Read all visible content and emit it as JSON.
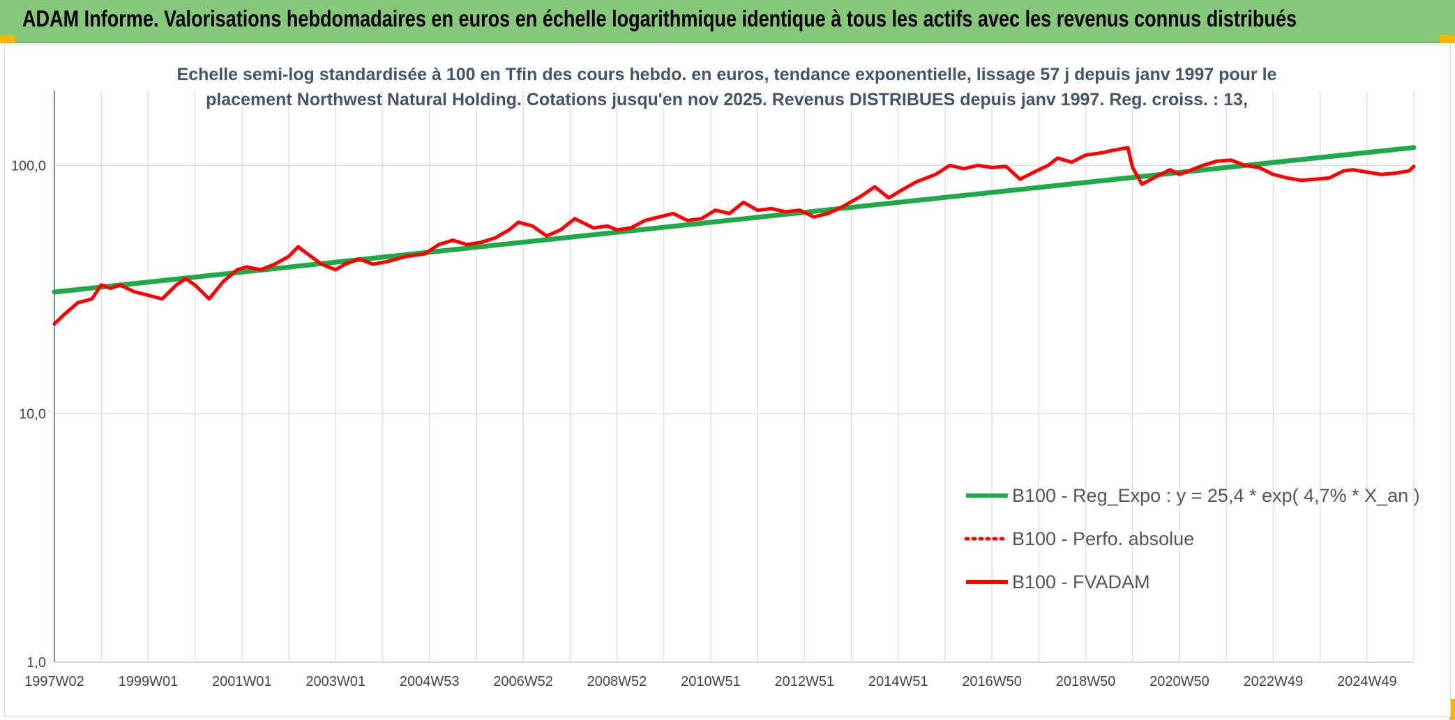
{
  "header": {
    "title": "ADAM Informe. Valorisations hebdomadaires en euros en échelle logarithmique identique à tous les actifs avec les revenus connus distribués"
  },
  "chart_data": {
    "type": "line",
    "title_lines": [
      "Echelle semi-log standardisée à 100 en Tfin des cours hebdo. en euros, tendance exponentielle, lissage 57 j depuis janv 1997 pour le",
      "placement Northwest Natural Holding. Cotations jusqu'en nov 2025. Revenus DISTRIBUES depuis janv 1997. Reg. croiss. : 13,"
    ],
    "y_scale": "log",
    "ylim": [
      1,
      200
    ],
    "y_ticks": [
      {
        "value": 1,
        "label": "1,0"
      },
      {
        "value": 10,
        "label": "10,0"
      },
      {
        "value": 100,
        "label": "100,0"
      }
    ],
    "xlim": [
      1997.0,
      2026.0
    ],
    "x_ticks": [
      {
        "value": 1997.0,
        "label": "1997W02"
      },
      {
        "value": 1999.0,
        "label": "1999W01"
      },
      {
        "value": 2001.0,
        "label": "2001W01"
      },
      {
        "value": 2003.0,
        "label": "2003W01"
      },
      {
        "value": 2005.0,
        "label": "2004W53"
      },
      {
        "value": 2007.0,
        "label": "2006W52"
      },
      {
        "value": 2009.0,
        "label": "2008W52"
      },
      {
        "value": 2011.0,
        "label": "2010W51"
      },
      {
        "value": 2013.0,
        "label": "2012W51"
      },
      {
        "value": 2015.0,
        "label": "2014W51"
      },
      {
        "value": 2017.0,
        "label": "2016W50"
      },
      {
        "value": 2019.0,
        "label": "2018W50"
      },
      {
        "value": 2021.0,
        "label": "2020W50"
      },
      {
        "value": 2023.0,
        "label": "2022W49"
      },
      {
        "value": 2025.0,
        "label": "2024W49"
      }
    ],
    "grid": true,
    "legend_position": "bottom-right",
    "series": [
      {
        "name": "B100 - Reg_Expo : y = 25,4 * exp( 4,7% *  X_an )",
        "color": "#1faa4a",
        "style": "solid",
        "x": [
          1997.0,
          2026.0
        ],
        "y": [
          30.9,
          118.0
        ]
      },
      {
        "name": "B100 - Perfo. absolue",
        "color": "#ff0000",
        "style": "dotted",
        "x": [],
        "y": []
      },
      {
        "name": "B100 - FVADAM",
        "color": "#ff0000",
        "style": "solid",
        "x": [
          1997.0,
          1997.2,
          1997.5,
          1997.8,
          1998.0,
          1998.2,
          1998.4,
          1998.7,
          1999.0,
          1999.3,
          1999.6,
          1999.8,
          2000.0,
          2000.3,
          2000.6,
          2000.9,
          2001.1,
          2001.4,
          2001.7,
          2002.0,
          2002.2,
          2002.4,
          2002.7,
          2003.0,
          2003.2,
          2003.5,
          2003.8,
          2004.1,
          2004.5,
          2004.9,
          2005.2,
          2005.5,
          2005.8,
          2006.1,
          2006.4,
          2006.7,
          2006.9,
          2007.2,
          2007.5,
          2007.8,
          2008.1,
          2008.5,
          2008.8,
          2009.0,
          2009.3,
          2009.6,
          2009.9,
          2010.2,
          2010.5,
          2010.8,
          2011.1,
          2011.4,
          2011.7,
          2012.0,
          2012.3,
          2012.6,
          2012.9,
          2013.2,
          2013.5,
          2013.8,
          2014.2,
          2014.5,
          2014.8,
          2015.1,
          2015.4,
          2015.8,
          2016.1,
          2016.4,
          2016.7,
          2017.0,
          2017.3,
          2017.6,
          2017.9,
          2018.2,
          2018.4,
          2018.7,
          2019.0,
          2019.3,
          2019.6,
          2019.9,
          2020.0,
          2020.2,
          2020.5,
          2020.8,
          2021.0,
          2021.2,
          2021.5,
          2021.8,
          2022.1,
          2022.4,
          2022.7,
          2023.0,
          2023.3,
          2023.6,
          2023.9,
          2024.2,
          2024.5,
          2024.7,
          2025.0,
          2025.3,
          2025.6,
          2025.9,
          2026.0
        ],
        "y": [
          23,
          25,
          28,
          29,
          33,
          32,
          33,
          31,
          30,
          29,
          33,
          35,
          33,
          29,
          34,
          38,
          39,
          38,
          40,
          43,
          47,
          44,
          40,
          38,
          40,
          42,
          40,
          41,
          43,
          44,
          48,
          50,
          48,
          49,
          51,
          55,
          59,
          57,
          52,
          55,
          61,
          56,
          57,
          55,
          56,
          60,
          62,
          64,
          60,
          61,
          66,
          64,
          71,
          66,
          67,
          65,
          66,
          62,
          64,
          68,
          75,
          82,
          74,
          80,
          86,
          92,
          100,
          97,
          100,
          98,
          99,
          88,
          94,
          100,
          107,
          103,
          110,
          112,
          115,
          118,
          98,
          84,
          90,
          96,
          92,
          95,
          100,
          104,
          105,
          100,
          98,
          92,
          89,
          87,
          88,
          89,
          95,
          96,
          94,
          92,
          93,
          95,
          99
        ]
      }
    ]
  }
}
